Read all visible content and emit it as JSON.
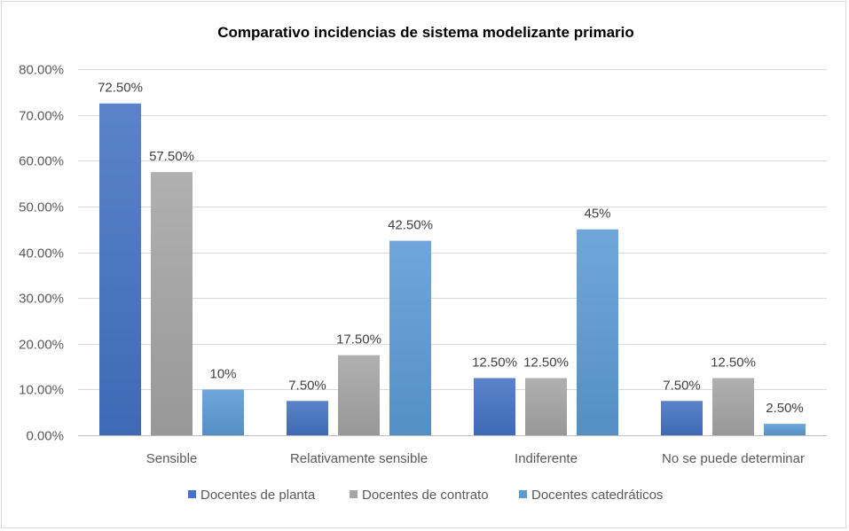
{
  "chart_data": {
    "type": "bar",
    "title": "Comparativo  incidencias de sistema modelizante primario",
    "categories": [
      "Sensible",
      "Relativamente sensible",
      "Indiferente",
      "No se puede determinar"
    ],
    "series": [
      {
        "name": "Docentes de planta",
        "values": [
          72.5,
          7.5,
          12.5,
          7.5
        ],
        "labels": [
          "72.50%",
          "7.50%",
          "12.50%",
          "7.50%"
        ],
        "color": "#4472c4"
      },
      {
        "name": "Docentes de contrato",
        "values": [
          57.5,
          17.5,
          12.5,
          12.5
        ],
        "labels": [
          "57.50%",
          "17.50%",
          "12.50%",
          "12.50%"
        ],
        "color": "#a5a5a5"
      },
      {
        "name": "Docentes catedráticos",
        "values": [
          10,
          42.5,
          45,
          2.5
        ],
        "labels": [
          "10%",
          "42.50%",
          "45%",
          "2.50%"
        ],
        "color": "#5b9bd5"
      }
    ],
    "y_ticks": [
      "0.00%",
      "10.00%",
      "20.00%",
      "30.00%",
      "40.00%",
      "50.00%",
      "60.00%",
      "70.00%",
      "80.00%"
    ],
    "ylim": [
      0,
      80
    ],
    "grid": true,
    "legend_position": "bottom"
  }
}
